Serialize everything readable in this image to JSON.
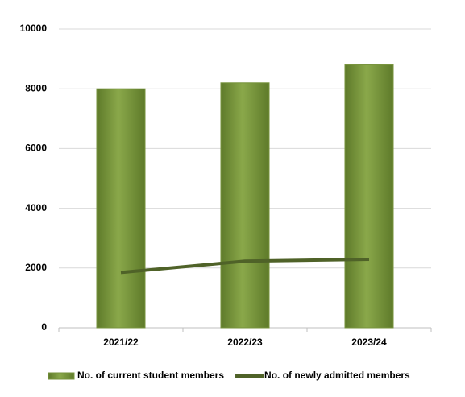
{
  "chart_data": {
    "type": "bar",
    "categories": [
      "2021/22",
      "2022/23",
      "2023/24"
    ],
    "series": [
      {
        "name": "No. of current student members",
        "type": "bar",
        "color": "#77933c",
        "values": [
          8000,
          8200,
          8800
        ]
      },
      {
        "name": "No. of newly admitted members",
        "type": "line",
        "color": "#4f6228",
        "values": [
          1850,
          2230,
          2290
        ]
      }
    ],
    "ylim": [
      0,
      10000
    ],
    "yticks": [
      0,
      2000,
      4000,
      6000,
      8000,
      10000
    ],
    "grid": true,
    "legend": "bottom"
  }
}
